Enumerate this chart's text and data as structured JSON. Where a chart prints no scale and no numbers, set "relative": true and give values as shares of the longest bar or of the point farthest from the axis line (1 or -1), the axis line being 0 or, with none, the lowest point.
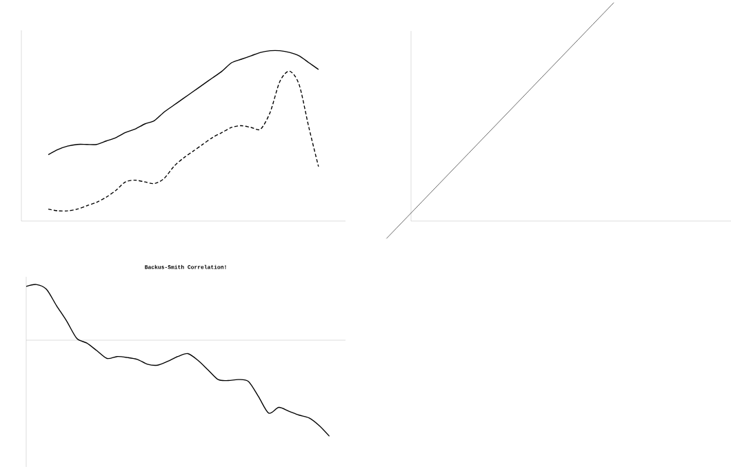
{
  "chart_data": [
    {
      "type": "line",
      "relative": true,
      "categories": [
        null,
        null,
        null,
        null,
        null,
        null,
        null,
        null,
        null,
        null,
        null,
        null,
        null,
        null,
        null,
        null,
        null,
        null,
        null,
        null,
        null,
        null,
        null,
        null,
        null,
        null,
        null,
        null,
        null
      ],
      "series": [
        {
          "color": "#000000",
          "line_style": "solid",
          "values": [
            0.39,
            0.42,
            0.44,
            0.45,
            0.45,
            0.45,
            0.47,
            0.49,
            0.52,
            0.54,
            0.57,
            0.59,
            0.64,
            0.68,
            0.72,
            0.76,
            0.8,
            0.84,
            0.88,
            0.93,
            0.95,
            0.97,
            0.99,
            1.0,
            1.0,
            0.99,
            0.97,
            0.93,
            0.89
          ]
        },
        {
          "color": "#000000",
          "line_style": "dashed",
          "values": [
            0.07,
            0.06,
            0.06,
            0.07,
            0.09,
            0.11,
            0.14,
            0.18,
            0.23,
            0.24,
            0.23,
            0.22,
            0.25,
            0.32,
            0.37,
            0.41,
            0.45,
            0.49,
            0.52,
            0.55,
            0.56,
            0.55,
            0.54,
            0.64,
            0.82,
            0.88,
            0.8,
            0.55,
            0.32
          ]
        }
      ]
    },
    {
      "type": "line",
      "relative": true,
      "categories": [
        null,
        null
      ],
      "series": [
        {
          "color": "#000000",
          "line_style": "solid",
          "values": [
            -0.08,
            1.0
          ]
        }
      ]
    },
    {
      "type": "line",
      "relative": true,
      "title": "Backus-Smith Correlation!",
      "categories": [
        null,
        null,
        null,
        null,
        null,
        null,
        null,
        null,
        null,
        null,
        null,
        null,
        null,
        null,
        null,
        null,
        null,
        null,
        null,
        null,
        null,
        null,
        null,
        null,
        null,
        null,
        null,
        null,
        null,
        null,
        null
      ],
      "series": [
        {
          "color": "#000000",
          "line_style": "solid",
          "values": [
            0.56,
            0.58,
            0.53,
            0.36,
            0.2,
            0.02,
            -0.03,
            -0.11,
            -0.19,
            -0.17,
            -0.18,
            -0.2,
            -0.25,
            -0.26,
            -0.22,
            -0.17,
            -0.14,
            -0.21,
            -0.31,
            -0.41,
            -0.42,
            -0.41,
            -0.43,
            -0.59,
            -0.76,
            -0.7,
            -0.74,
            -0.78,
            -0.81,
            -0.89,
            -1.0
          ]
        }
      ]
    }
  ]
}
